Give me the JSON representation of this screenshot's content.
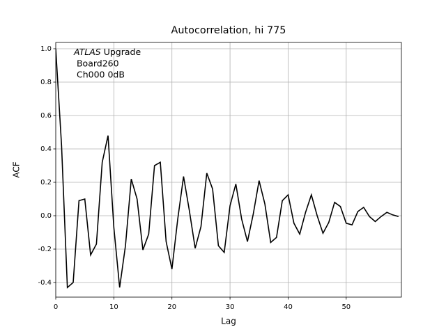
{
  "chart_data": {
    "type": "line",
    "title": "Autocorrelation, hi 775",
    "x_label": "Lag",
    "y_label": "ACF",
    "annotation": {
      "italic": "ATLAS",
      "lines": [
        " Upgrade",
        " Board260",
        " Ch000 0dB"
      ]
    },
    "x": [
      0,
      1,
      2,
      3,
      4,
      5,
      6,
      7,
      8,
      9,
      10,
      11,
      12,
      13,
      14,
      15,
      16,
      17,
      18,
      19,
      20,
      21,
      22,
      23,
      24,
      25,
      26,
      27,
      28,
      29,
      30,
      31,
      32,
      33,
      34,
      35,
      36,
      37,
      38,
      39,
      40,
      41,
      42,
      43,
      44,
      45,
      46,
      47,
      48,
      49,
      50,
      51,
      52,
      53,
      54,
      55,
      56,
      57,
      58,
      59
    ],
    "series": [
      {
        "color": "#000000",
        "values": [
          1.0,
          0.42,
          -0.43,
          -0.4,
          0.09,
          0.1,
          -0.235,
          -0.17,
          0.32,
          0.48,
          -0.07,
          -0.43,
          -0.18,
          0.22,
          0.1,
          -0.205,
          -0.11,
          0.3,
          0.32,
          -0.155,
          -0.32,
          -0.02,
          0.235,
          0.03,
          -0.195,
          -0.065,
          0.255,
          0.16,
          -0.18,
          -0.22,
          0.06,
          0.19,
          -0.02,
          -0.155,
          0.01,
          0.21,
          0.07,
          -0.16,
          -0.13,
          0.09,
          0.125,
          -0.045,
          -0.11,
          0.02,
          0.125,
          0.0,
          -0.105,
          -0.04,
          0.08,
          0.055,
          -0.045,
          -0.055,
          0.025,
          0.05,
          -0.005,
          -0.035,
          -0.005,
          0.02,
          0.005,
          -0.005
        ]
      }
    ],
    "xlim": [
      0,
      59.5
    ],
    "ylim": [
      -0.4875,
      1.0375
    ],
    "xticks": [
      0,
      10,
      20,
      30,
      40,
      50
    ],
    "yticks": [
      -0.4,
      -0.2,
      {
        "value": 0,
        "label": "0.0"
      },
      0.2,
      0.4,
      0.6,
      0.8,
      {
        "value": 1,
        "label": "1.0"
      }
    ],
    "grid": true
  }
}
